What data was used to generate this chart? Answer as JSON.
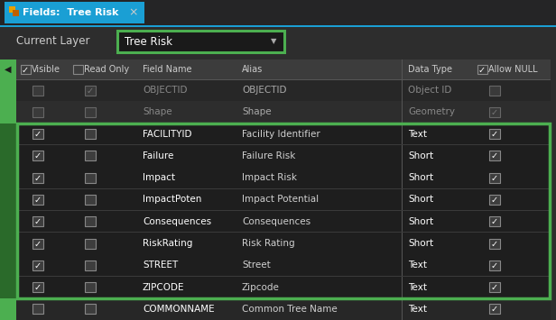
{
  "bg_color": "#2d2d2d",
  "tab_bg": "#1a9fd4",
  "tab_text": "Fields:  Tree Risk",
  "tab_text_color": "#ffffff",
  "current_layer_label": "Current Layer",
  "current_layer_value": "Tree Risk",
  "dropdown_border": "#4caf50",
  "green_border": "#4caf50",
  "green_sidebar": "#4caf50",
  "text_color_bright": "#ffffff",
  "text_color_dim": "#888888",
  "text_color_gray": "#666666",
  "header_labels": [
    "Visible",
    "Read Only",
    "Field Name",
    "Alias",
    "Data Type",
    "Allow NULL"
  ],
  "rows": [
    {
      "field": "OBJECTID",
      "alias": "OBJECTID",
      "dtype": "Object ID",
      "visible": false,
      "readonly": true,
      "null": false,
      "dim": true,
      "selected": false
    },
    {
      "field": "Shape",
      "alias": "Shape",
      "dtype": "Geometry",
      "visible": false,
      "readonly": false,
      "null": true,
      "dim": true,
      "selected": false
    },
    {
      "field": "FACILITYID",
      "alias": "Facility Identifier",
      "dtype": "Text",
      "visible": true,
      "readonly": false,
      "null": true,
      "dim": false,
      "selected": true
    },
    {
      "field": "Failure",
      "alias": "Failure Risk",
      "dtype": "Short",
      "visible": true,
      "readonly": false,
      "null": true,
      "dim": false,
      "selected": true
    },
    {
      "field": "Impact",
      "alias": "Impact Risk",
      "dtype": "Short",
      "visible": true,
      "readonly": false,
      "null": true,
      "dim": false,
      "selected": true
    },
    {
      "field": "ImpactPoten",
      "alias": "Impact Potential",
      "dtype": "Short",
      "visible": true,
      "readonly": false,
      "null": true,
      "dim": false,
      "selected": true
    },
    {
      "field": "Consequences",
      "alias": "Consequences",
      "dtype": "Short",
      "visible": true,
      "readonly": false,
      "null": true,
      "dim": false,
      "selected": true
    },
    {
      "field": "RiskRating",
      "alias": "Risk Rating",
      "dtype": "Short",
      "visible": true,
      "readonly": false,
      "null": true,
      "dim": false,
      "selected": true
    },
    {
      "field": "STREET",
      "alias": "Street",
      "dtype": "Text",
      "visible": true,
      "readonly": false,
      "null": true,
      "dim": false,
      "selected": true
    },
    {
      "field": "ZIPCODE",
      "alias": "Zipcode",
      "dtype": "Text",
      "visible": true,
      "readonly": false,
      "null": true,
      "dim": false,
      "selected": true
    },
    {
      "field": "COMMONNAME",
      "alias": "Common Tree Name",
      "dtype": "Text",
      "visible": false,
      "readonly": false,
      "null": true,
      "dim": false,
      "selected": false
    }
  ]
}
